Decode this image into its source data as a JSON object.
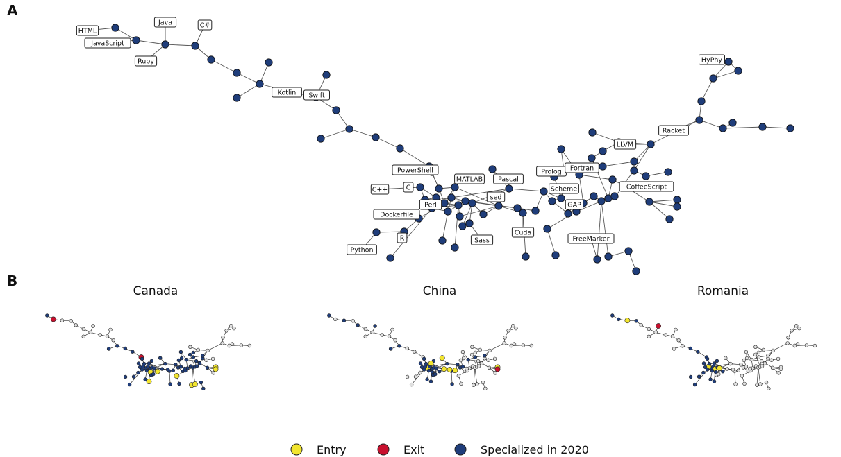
{
  "panel_a_letter": "A",
  "panel_b_letter": "B",
  "colors": {
    "specialized": "#1f3d7a",
    "entry": "#f2e52f",
    "exit": "#c8102e",
    "inactive": "#e0e0e0",
    "edge": "#555555"
  },
  "network_labels": [
    "HTML",
    "JavaScript",
    "Java",
    "Ruby",
    "C#",
    "Kotlin",
    "Swift",
    "HyPhy",
    "Racket",
    "LLVM",
    "PowerShell",
    "MATLAB",
    "Pascal",
    "Prolog",
    "Fortran",
    "C++",
    "C",
    "Scheme",
    "CoffeeScript",
    "Perl",
    "sed",
    "GAP",
    "Dockerfile",
    "R",
    "Python",
    "Sass",
    "Cuda",
    "FreeMarker"
  ],
  "subpanels": [
    {
      "title": "Canada"
    },
    {
      "title": "China"
    },
    {
      "title": "Romania"
    }
  ],
  "legend": [
    {
      "label": "Entry",
      "color_key": "entry"
    },
    {
      "label": "Exit",
      "color_key": "exit"
    },
    {
      "label": "Specialized in 2020",
      "color_key": "specialized"
    }
  ]
}
